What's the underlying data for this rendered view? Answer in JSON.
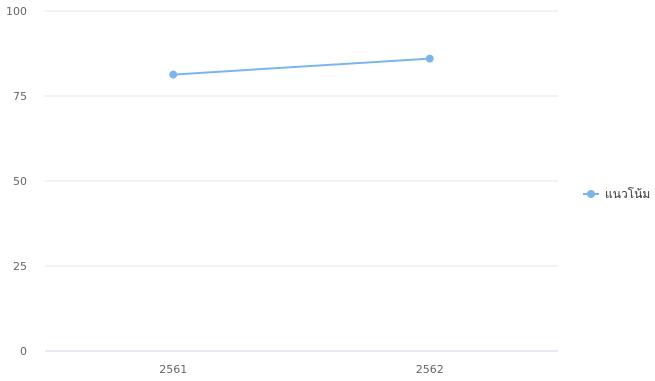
{
  "chart_data": {
    "type": "line",
    "categories": [
      "2561",
      "2562"
    ],
    "series": [
      {
        "name": "แนวโน้ม",
        "values": [
          81.3,
          86.0
        ],
        "color": "#7cb5ec"
      }
    ],
    "ylim": [
      0,
      100
    ],
    "yticks": [
      0,
      25,
      50,
      75,
      100
    ],
    "grid": true,
    "legend": "right",
    "colors": {
      "grid": "#e6e6e6",
      "baseline": "#ccd6eb",
      "tick_text": "#666666"
    }
  }
}
